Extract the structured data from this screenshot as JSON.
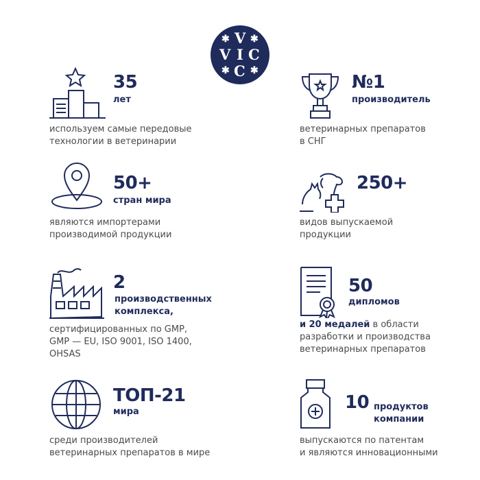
{
  "brand": {
    "logo_text": "VIC",
    "color": "#1f2b5b"
  },
  "stats": [
    {
      "icon": "podium-star-icon",
      "value": "35",
      "label": "лет",
      "desc": [
        "используем самые передовые",
        "технологии в ветеринарии"
      ]
    },
    {
      "icon": "trophy-icon",
      "value": "№1",
      "label": "производитель",
      "desc": [
        "ветеринарных препаратов",
        "в СНГ"
      ]
    },
    {
      "icon": "map-pin-icon",
      "value": "50+",
      "label": "стран мира",
      "desc": [
        "являются импортерами",
        "производимой продукции"
      ]
    },
    {
      "icon": "dog-cat-cross-icon",
      "value": "250+",
      "desc": [
        "видов выпускаемой",
        "продукции"
      ]
    },
    {
      "icon": "factory-icon",
      "value": "2",
      "label": [
        "производственных",
        "комплекса,"
      ],
      "desc": [
        "сертифицированных по GMP,",
        "GMP — EU, ISO 9001, ISO 1400,",
        "OHSAS"
      ]
    },
    {
      "icon": "diploma-icon",
      "value": "50",
      "label": "дипломов",
      "desc_bold": "и 20 медалей",
      "desc": [
        " в области",
        "разработки и производства",
        "ветеринарных препаратов"
      ]
    },
    {
      "icon": "globe-icon",
      "value": "ТОП-21",
      "label": "мира",
      "desc": [
        "среди производителей",
        "ветеринарных препаратов в мире"
      ]
    },
    {
      "icon": "medicine-bottle-icon",
      "value": "10",
      "label": [
        "продуктов",
        "компании"
      ],
      "desc": [
        "выпускаются по патентам",
        "и являются инновационными"
      ]
    }
  ]
}
